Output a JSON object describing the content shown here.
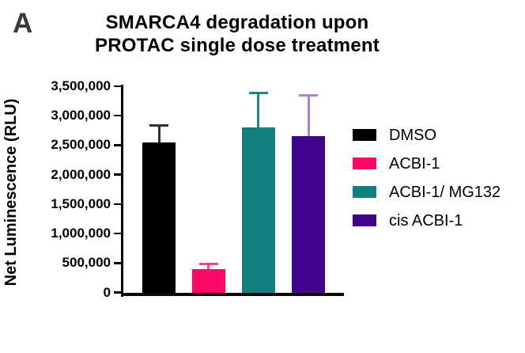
{
  "panel_label": "A",
  "title": {
    "line1": "SMARCA4 degradation upon",
    "line2": "PROTAC single dose treatment"
  },
  "chart_data": {
    "type": "bar",
    "title": "SMARCA4 degradation upon PROTAC single dose treatment",
    "ylabel": "Net Luminescence (RLU)",
    "xlabel": "",
    "ylim": [
      0,
      3500000
    ],
    "grid": false,
    "legend_position": "right",
    "error_bars": "upper-only",
    "yticks": [
      {
        "value": 0,
        "label": "0"
      },
      {
        "value": 500000,
        "label": "500,000"
      },
      {
        "value": 1000000,
        "label": "1,000,000"
      },
      {
        "value": 1500000,
        "label": "1,500,000"
      },
      {
        "value": 2000000,
        "label": "2,000,000"
      },
      {
        "value": 2500000,
        "label": "2,500,000"
      },
      {
        "value": 3000000,
        "label": "3,000,000"
      },
      {
        "value": 3500000,
        "label": "3,500,000"
      }
    ],
    "bars": [
      {
        "name": "DMSO",
        "value": 2550000,
        "error_top": 2830000,
        "color": "#000000",
        "error_color": "#2e2e2e"
      },
      {
        "name": "ACBI-1",
        "value": 400000,
        "error_top": 480000,
        "color": "#fb0a6a",
        "error_color": "#fb4190"
      },
      {
        "name": "ACBI-1/ MG132",
        "value": 2800000,
        "error_top": 3380000,
        "color": "#137f7e",
        "error_color": "#1e8887"
      },
      {
        "name": "cis ACBI-1",
        "value": 2650000,
        "error_top": 3350000,
        "color": "#41058c",
        "error_color": "#a884d8"
      }
    ]
  }
}
